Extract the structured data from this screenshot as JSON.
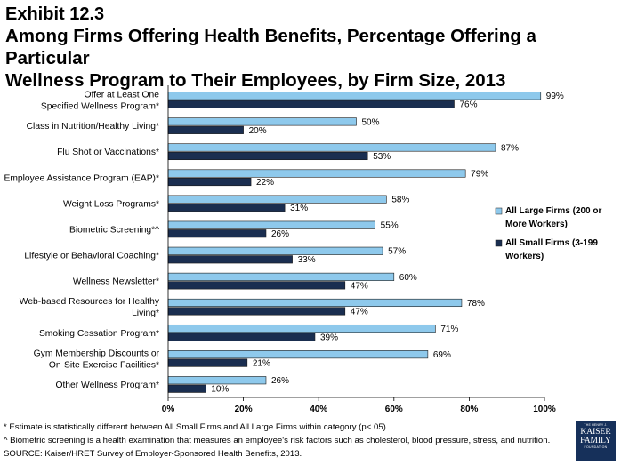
{
  "exhibit": "Exhibit 12.3",
  "title_line1": "Among Firms Offering Health Benefits, Percentage Offering a Particular",
  "title_line2": "Wellness Program to Their Employees, by Firm Size, 2013",
  "colors": {
    "large": "#8ec9ec",
    "small": "#1a2e50",
    "border": "#1a1a1a"
  },
  "chart_data": {
    "type": "bar",
    "orientation": "horizontal",
    "categories": [
      [
        "Offer at Least One",
        "Specified Wellness Program*"
      ],
      [
        "Class in Nutrition/Healthy Living*"
      ],
      [
        "Flu Shot or Vaccinations*"
      ],
      [
        "Employee Assistance Program (EAP)*"
      ],
      [
        "Weight Loss Programs*"
      ],
      [
        "Biometric Screening*^"
      ],
      [
        "Lifestyle or Behavioral Coaching*"
      ],
      [
        "Wellness Newsletter*"
      ],
      [
        "Web-based Resources for Healthy",
        "Living*"
      ],
      [
        "Smoking Cessation Program*"
      ],
      [
        "Gym Membership Discounts or",
        "On-Site Exercise Facilities*"
      ],
      [
        "Other Wellness Program*"
      ]
    ],
    "series": [
      {
        "name": [
          "All Large Firms (200 or",
          "More Workers)"
        ],
        "values": [
          99,
          50,
          87,
          79,
          58,
          55,
          57,
          60,
          78,
          71,
          69,
          26
        ]
      },
      {
        "name": [
          "All Small Firms (3-199",
          "Workers)"
        ],
        "values": [
          76,
          20,
          53,
          22,
          31,
          26,
          33,
          47,
          47,
          39,
          21,
          10
        ]
      }
    ],
    "xlim": [
      0,
      100
    ],
    "xticks": [
      0,
      20,
      40,
      60,
      80,
      100
    ],
    "tick_suffix": "%",
    "value_suffix": "%",
    "legend_position": "right"
  },
  "footnotes": [
    "* Estimate is statistically different between All Small Firms and All Large Firms within category (p<.05).",
    "^ Biometric screening is a health examination that measures an employee's risk factors such as cholesterol, blood pressure, stress, and nutrition.",
    "SOURCE: Kaiser/HRET Survey of Employer-Sponsored Health Benefits, 2013."
  ],
  "logo": {
    "line1": "THE HENRY J.",
    "line2a": "KAISER",
    "line2b": "FAMILY",
    "line3": "FOUNDATION"
  }
}
